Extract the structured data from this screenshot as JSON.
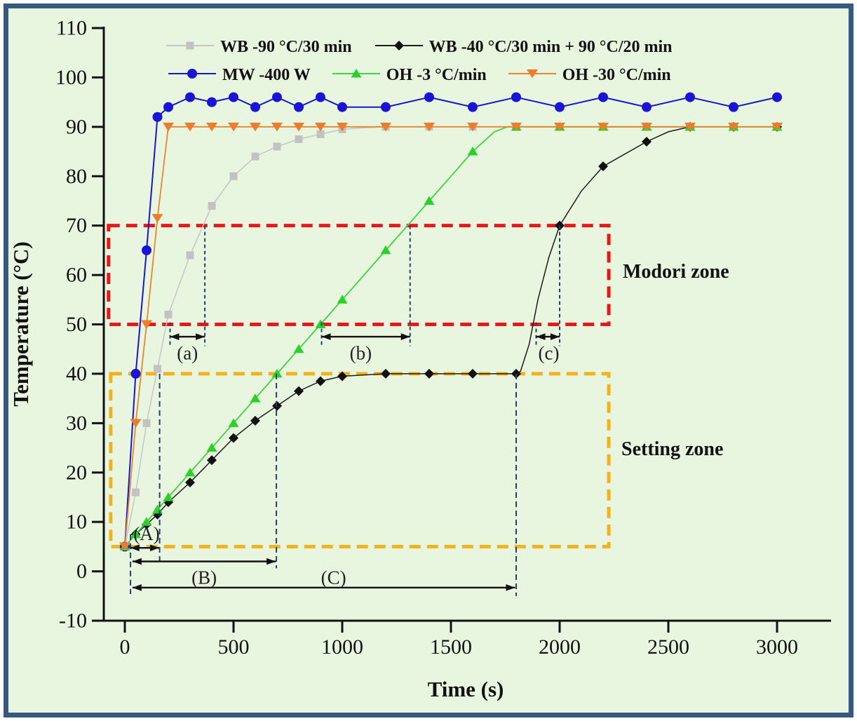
{
  "figure": {
    "frame_color": "#36597f",
    "background_color": "#e9f6df",
    "axis_color": "#111111",
    "guide_color": "#23406b"
  },
  "chart_data": {
    "type": "line",
    "title": "",
    "xlabel": "Time (s)",
    "ylabel": "Temperature (°C)",
    "xlim": [
      -97,
      3248
    ],
    "ylim": [
      -10,
      110
    ],
    "grid": false,
    "legend_position": "top-inside",
    "xticks": [
      0,
      500,
      1000,
      1500,
      2000,
      2500,
      3000
    ],
    "yticks": [
      -10,
      0,
      10,
      20,
      30,
      40,
      50,
      60,
      70,
      80,
      90,
      100,
      110
    ],
    "series": [
      {
        "name": "WB -90 °C/30 min",
        "color": "#c6c6c6",
        "marker": "square",
        "marker_color": "#c2c2c2",
        "lw": 1.5,
        "markers": [
          [
            0,
            5
          ],
          [
            50,
            16
          ],
          [
            100,
            30
          ],
          [
            150,
            41
          ],
          [
            200,
            52
          ],
          [
            300,
            64
          ],
          [
            400,
            74
          ],
          [
            500,
            80
          ],
          [
            600,
            84
          ],
          [
            700,
            86
          ],
          [
            800,
            87.5
          ],
          [
            900,
            88.5
          ],
          [
            1000,
            89.5
          ],
          [
            1200,
            90
          ],
          [
            1400,
            90
          ],
          [
            1600,
            90
          ],
          [
            1800,
            90
          ],
          [
            2000,
            90
          ],
          [
            2200,
            90
          ],
          [
            2400,
            90
          ],
          [
            2600,
            90
          ],
          [
            2800,
            90
          ],
          [
            3000,
            90
          ]
        ],
        "line_extra": [
          [
            1100,
            89.8
          ]
        ]
      },
      {
        "name": "WB -40 °C/30 min + 90 °C/20 min",
        "color": "#1c1c1c",
        "marker": "diamond",
        "marker_color": "#111111",
        "lw": 1.5,
        "markers": [
          [
            0,
            5
          ],
          [
            50,
            7.5
          ],
          [
            100,
            9.5
          ],
          [
            150,
            11.5
          ],
          [
            200,
            14
          ],
          [
            300,
            18
          ],
          [
            400,
            22.5
          ],
          [
            500,
            27
          ],
          [
            600,
            30.5
          ],
          [
            700,
            33.5
          ],
          [
            800,
            36.5
          ],
          [
            900,
            38.5
          ],
          [
            1000,
            39.5
          ],
          [
            1200,
            40
          ],
          [
            1400,
            40
          ],
          [
            1600,
            40
          ],
          [
            1800,
            40
          ],
          [
            2000,
            70
          ],
          [
            2200,
            82
          ],
          [
            2400,
            87
          ],
          [
            2600,
            90
          ],
          [
            2800,
            90
          ],
          [
            3000,
            90
          ]
        ],
        "line_extra": [
          [
            1820,
            40.5
          ],
          [
            1860,
            46
          ],
          [
            1900,
            55
          ],
          [
            1950,
            63.5
          ],
          [
            2100,
            77
          ],
          [
            2500,
            89
          ]
        ]
      },
      {
        "name": "MW -400 W",
        "color": "#1717c9",
        "marker": "circle",
        "marker_color": "#1b14d6",
        "lw": 2,
        "markers": [
          [
            0,
            5
          ],
          [
            50,
            40
          ],
          [
            100,
            65
          ],
          [
            150,
            92
          ],
          [
            200,
            94
          ],
          [
            300,
            96
          ],
          [
            400,
            95
          ],
          [
            500,
            96
          ],
          [
            600,
            94
          ],
          [
            700,
            96
          ],
          [
            800,
            94
          ],
          [
            900,
            96
          ],
          [
            1000,
            94
          ],
          [
            1200,
            94
          ],
          [
            1400,
            96
          ],
          [
            1600,
            94
          ],
          [
            1800,
            96
          ],
          [
            2000,
            94
          ],
          [
            2200,
            96
          ],
          [
            2400,
            94
          ],
          [
            2600,
            96
          ],
          [
            2800,
            94
          ],
          [
            3000,
            96
          ]
        ],
        "line_extra": []
      },
      {
        "name": "OH -3 °C/min",
        "color": "#3dd43d",
        "marker": "triangle-up",
        "marker_color": "#2bd12b",
        "lw": 1.8,
        "markers": [
          [
            0,
            5
          ],
          [
            50,
            7.5
          ],
          [
            100,
            10
          ],
          [
            150,
            12.5
          ],
          [
            200,
            15
          ],
          [
            300,
            20
          ],
          [
            400,
            25
          ],
          [
            500,
            30
          ],
          [
            600,
            35
          ],
          [
            700,
            40
          ],
          [
            800,
            45
          ],
          [
            900,
            50
          ],
          [
            1000,
            55
          ],
          [
            1200,
            65
          ],
          [
            1400,
            75
          ],
          [
            1600,
            85
          ],
          [
            1800,
            90
          ],
          [
            2000,
            90
          ],
          [
            2200,
            90
          ],
          [
            2400,
            90
          ],
          [
            2600,
            90
          ],
          [
            2800,
            90
          ],
          [
            3000,
            90
          ]
        ],
        "line_extra": [
          [
            1100,
            60
          ],
          [
            1300,
            70
          ],
          [
            1500,
            80
          ],
          [
            1700,
            89
          ],
          [
            1760,
            90
          ]
        ]
      },
      {
        "name": "OH -30 °C/min",
        "color": "#e8852e",
        "marker": "triangle-down",
        "marker_color": "#ec7d2f",
        "lw": 1.8,
        "markers": [
          [
            0,
            5
          ],
          [
            50,
            30
          ],
          [
            100,
            50
          ],
          [
            150,
            71.5
          ],
          [
            200,
            90
          ],
          [
            300,
            90
          ],
          [
            400,
            90
          ],
          [
            500,
            90
          ],
          [
            600,
            90
          ],
          [
            700,
            90
          ],
          [
            800,
            90
          ],
          [
            900,
            90
          ],
          [
            1000,
            90
          ],
          [
            1200,
            90
          ],
          [
            1400,
            90
          ],
          [
            1600,
            90
          ],
          [
            1800,
            90
          ],
          [
            2000,
            90
          ],
          [
            2200,
            90
          ],
          [
            2400,
            90
          ],
          [
            2600,
            90
          ],
          [
            2800,
            90
          ],
          [
            3000,
            90
          ]
        ],
        "line_extra": []
      }
    ],
    "zones": [
      {
        "label": "Modori zone",
        "color": "#e41a1a",
        "t": [
          -75,
          2226
        ],
        "T": [
          50,
          70
        ]
      },
      {
        "label": "Setting zone",
        "color": "#f2b21c",
        "t": [
          -65,
          2226
        ],
        "T": [
          5,
          40
        ]
      }
    ],
    "spans": [
      {
        "label": "(a)",
        "t1": 208,
        "t2": 368,
        "T": 47.5,
        "label_t": 288,
        "label_T": 44.2
      },
      {
        "label": "(b)",
        "t1": 905,
        "t2": 1312,
        "T": 47.5,
        "label_t": 1085,
        "label_T": 44.2
      },
      {
        "label": "(c)",
        "t1": 1892,
        "t2": 2000,
        "T": 47.5,
        "label_t": 1950,
        "label_T": 44.2
      },
      {
        "label": "(A)",
        "t1": 25,
        "t2": 158,
        "T": 4.75,
        "label_t": 100,
        "label_T": 7.6
      },
      {
        "label": "(B)",
        "t1": 35,
        "t2": 694,
        "T": 2.0,
        "label_t": 365,
        "label_T": -1.3
      },
      {
        "label": "(C)",
        "t1": 35,
        "t2": 1795,
        "T": -3.3,
        "label_t": 960,
        "label_T": -1.3
      }
    ],
    "guides": [
      {
        "t": 208,
        "T1": 50.4,
        "T2": 45.6,
        "style": "short"
      },
      {
        "t": 368,
        "T1": 70,
        "T2": 45.6,
        "style": "short"
      },
      {
        "t": 905,
        "T1": 50.4,
        "T2": 45.6,
        "style": "short"
      },
      {
        "t": 1312,
        "T1": 70,
        "T2": 45.6,
        "style": "short"
      },
      {
        "t": 1892,
        "T1": 50.4,
        "T2": 45.6,
        "style": "short"
      },
      {
        "t": 2000,
        "T1": 70,
        "T2": 45.6,
        "style": "short"
      },
      {
        "t": 26,
        "T1": 7.5,
        "T2": -4.6,
        "style": "long"
      },
      {
        "t": 160,
        "T1": 40,
        "T2": 2.0,
        "style": "long"
      },
      {
        "t": 697,
        "T1": 40,
        "T2": 0.6,
        "style": "long"
      },
      {
        "t": 1800,
        "T1": 40,
        "T2": -5.0,
        "style": "long"
      }
    ]
  }
}
